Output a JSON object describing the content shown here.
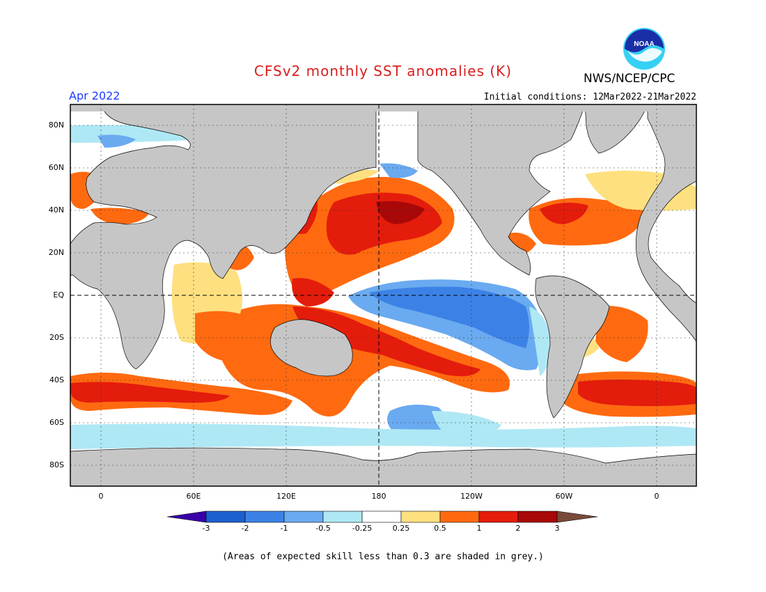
{
  "title": "CFSv2 monthly SST anomalies (K)",
  "agency": "NWS/NCEP/CPC",
  "logo_text": "NOAA",
  "valid_month": "Apr 2022",
  "initial_conditions": "Initial conditions: 12Mar2022-21Mar2022",
  "footnote": "(Areas of expected skill less than 0.3 are shaded in grey.)",
  "lat_labels": [
    "80N",
    "60N",
    "40N",
    "20N",
    "EQ",
    "20S",
    "40S",
    "60S",
    "80S"
  ],
  "lon_labels": [
    "0",
    "60E",
    "120E",
    "180",
    "120W",
    "60W",
    "0"
  ],
  "colorbar": {
    "labels": [
      "-3",
      "-2",
      "-1",
      "-0.5",
      "-0.25",
      "0.25",
      "0.5",
      "1",
      "2",
      "3"
    ],
    "colors": [
      "#3a00a8",
      "#1e5fd0",
      "#3c82e6",
      "#6aaaf0",
      "#aee8f4",
      "#ffffff",
      "#ffe080",
      "#ff6a10",
      "#e41c0c",
      "#a80808",
      "#7a4a3a"
    ]
  },
  "colors": {
    "land": "#c6c6c6",
    "ocean_neutral": "#ffffff",
    "title": "#d81e1e",
    "month": "#1f3cff"
  }
}
